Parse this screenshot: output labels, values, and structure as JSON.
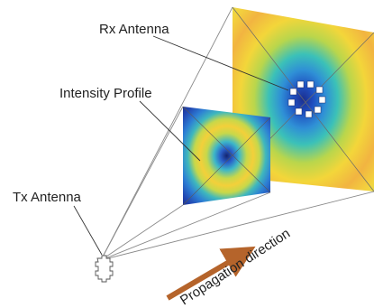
{
  "labels": {
    "rx_antenna": "Rx Antenna",
    "intensity_profile": "Intensity Profile",
    "tx_antenna": "Tx Antenna",
    "propagation_direction": "Propagation direction"
  },
  "colors": {
    "beam_line": "#8a8a8a",
    "leader_line": "#333333",
    "arrow": "#b5642b",
    "ring_center": "#1a2f8f",
    "ring_mid_blue": "#2f8fd6",
    "ring_cyan": "#3bc1b8",
    "ring_yellow": "#f3d63a",
    "ring_orange": "#f2b441"
  }
}
